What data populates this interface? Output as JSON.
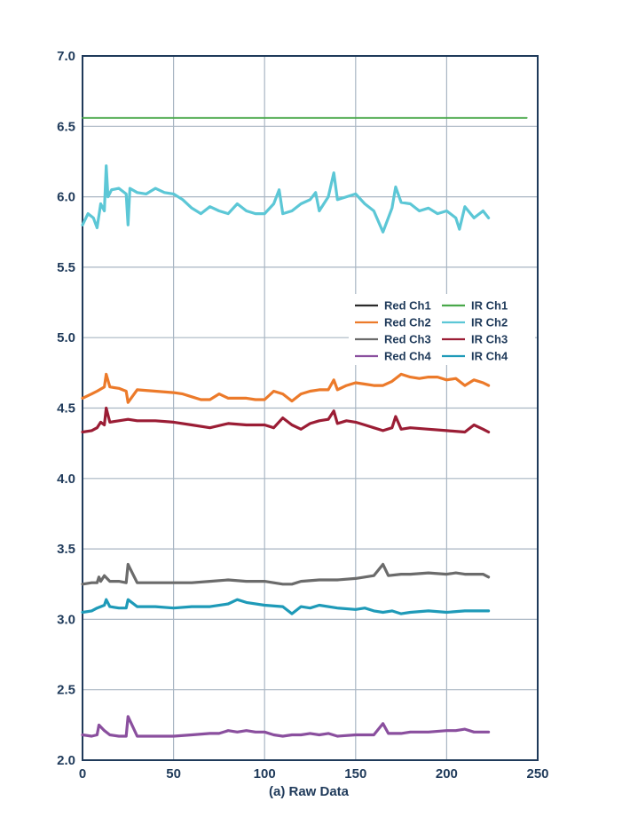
{
  "chart_data": {
    "type": "line",
    "title": "",
    "xlabel": "(a) Raw Data",
    "ylabel": "",
    "xlim": [
      0,
      250
    ],
    "ylim": [
      2.0,
      7.0
    ],
    "xticks": [
      0,
      50,
      100,
      150,
      200,
      250
    ],
    "xtick_labels": [
      "0",
      "50",
      "100",
      "150",
      "200",
      "250"
    ],
    "yticks": [
      2.0,
      2.5,
      3.0,
      3.5,
      4.0,
      4.5,
      5.0,
      5.5,
      6.0,
      6.5,
      7.0
    ],
    "ytick_labels": [
      "2.0",
      "2.5",
      "3.0",
      "3.5",
      "4.0",
      "4.5",
      "5.0",
      "5.5",
      "6.0",
      "6.5",
      "7.0"
    ],
    "grid": true,
    "legend_position": "right-middle",
    "series": [
      {
        "name": "Red Ch1",
        "color": "#2b2b2b",
        "x": [],
        "y": []
      },
      {
        "name": "Red Ch2",
        "color": "#ec7a2a",
        "x": [
          0,
          5,
          8,
          12,
          13,
          15,
          20,
          24,
          25,
          30,
          40,
          50,
          55,
          60,
          65,
          70,
          75,
          80,
          85,
          90,
          95,
          100,
          105,
          110,
          115,
          120,
          125,
          130,
          135,
          138,
          140,
          145,
          150,
          155,
          160,
          165,
          170,
          175,
          180,
          185,
          190,
          195,
          200,
          205,
          210,
          215,
          220,
          223
        ],
        "y": [
          4.57,
          4.6,
          4.62,
          4.65,
          4.74,
          4.65,
          4.64,
          4.62,
          4.54,
          4.63,
          4.62,
          4.61,
          4.6,
          4.58,
          4.56,
          4.56,
          4.6,
          4.57,
          4.57,
          4.57,
          4.56,
          4.56,
          4.62,
          4.6,
          4.55,
          4.6,
          4.62,
          4.63,
          4.63,
          4.7,
          4.63,
          4.66,
          4.68,
          4.67,
          4.66,
          4.66,
          4.69,
          4.74,
          4.72,
          4.71,
          4.72,
          4.72,
          4.7,
          4.71,
          4.66,
          4.7,
          4.68,
          4.66
        ]
      },
      {
        "name": "Red Ch3",
        "color": "#6b6b6b",
        "x": [
          0,
          5,
          8,
          9,
          10,
          12,
          15,
          20,
          24,
          25,
          30,
          40,
          50,
          60,
          70,
          80,
          90,
          100,
          110,
          115,
          120,
          130,
          140,
          150,
          160,
          165,
          168,
          175,
          180,
          190,
          200,
          205,
          210,
          220,
          223
        ],
        "y": [
          3.25,
          3.26,
          3.26,
          3.3,
          3.27,
          3.31,
          3.27,
          3.27,
          3.26,
          3.39,
          3.26,
          3.26,
          3.26,
          3.26,
          3.27,
          3.28,
          3.27,
          3.27,
          3.25,
          3.25,
          3.27,
          3.28,
          3.28,
          3.29,
          3.31,
          3.39,
          3.31,
          3.32,
          3.32,
          3.33,
          3.32,
          3.33,
          3.32,
          3.32,
          3.3
        ]
      },
      {
        "name": "Red Ch4",
        "color": "#8a4f9e",
        "x": [
          0,
          5,
          8,
          9,
          12,
          15,
          20,
          24,
          25,
          30,
          40,
          50,
          60,
          70,
          75,
          80,
          85,
          90,
          95,
          100,
          105,
          110,
          115,
          120,
          125,
          130,
          135,
          140,
          150,
          160,
          165,
          168,
          175,
          180,
          190,
          200,
          205,
          210,
          215,
          220,
          223
        ],
        "y": [
          2.18,
          2.17,
          2.18,
          2.25,
          2.21,
          2.18,
          2.17,
          2.17,
          2.31,
          2.17,
          2.17,
          2.17,
          2.18,
          2.19,
          2.19,
          2.21,
          2.2,
          2.21,
          2.2,
          2.2,
          2.18,
          2.17,
          2.18,
          2.18,
          2.19,
          2.18,
          2.19,
          2.17,
          2.18,
          2.18,
          2.26,
          2.19,
          2.19,
          2.2,
          2.2,
          2.21,
          2.21,
          2.22,
          2.2,
          2.2,
          2.2
        ]
      },
      {
        "name": "IR Ch1",
        "color": "#49a84a",
        "x": [
          0,
          244
        ],
        "y": [
          6.56,
          6.56
        ]
      },
      {
        "name": "IR Ch2",
        "color": "#5cc7d6",
        "x": [
          0,
          3,
          6,
          8,
          10,
          12,
          13,
          14,
          16,
          20,
          24,
          25,
          26,
          30,
          35,
          40,
          45,
          50,
          55,
          60,
          65,
          70,
          75,
          80,
          85,
          90,
          95,
          100,
          105,
          108,
          110,
          115,
          120,
          125,
          128,
          130,
          135,
          138,
          140,
          145,
          150,
          155,
          160,
          165,
          170,
          172,
          175,
          180,
          185,
          190,
          195,
          200,
          205,
          207,
          210,
          215,
          220,
          223
        ],
        "y": [
          5.8,
          5.88,
          5.85,
          5.78,
          5.95,
          5.9,
          6.22,
          6.0,
          6.05,
          6.06,
          6.02,
          5.8,
          6.06,
          6.03,
          6.02,
          6.06,
          6.03,
          6.02,
          5.98,
          5.92,
          5.88,
          5.93,
          5.9,
          5.88,
          5.95,
          5.9,
          5.88,
          5.88,
          5.95,
          6.05,
          5.88,
          5.9,
          5.95,
          5.98,
          6.03,
          5.9,
          6.0,
          6.17,
          5.98,
          6.0,
          6.02,
          5.95,
          5.9,
          5.75,
          5.92,
          6.07,
          5.96,
          5.95,
          5.9,
          5.92,
          5.88,
          5.9,
          5.85,
          5.77,
          5.93,
          5.85,
          5.9,
          5.85
        ]
      },
      {
        "name": "IR Ch3",
        "color": "#9b1d35",
        "x": [
          0,
          5,
          8,
          10,
          12,
          13,
          15,
          20,
          25,
          30,
          40,
          50,
          60,
          70,
          80,
          90,
          100,
          105,
          110,
          115,
          120,
          125,
          130,
          135,
          138,
          140,
          145,
          150,
          155,
          160,
          165,
          170,
          172,
          175,
          180,
          190,
          200,
          210,
          215,
          220,
          223
        ],
        "y": [
          4.33,
          4.34,
          4.36,
          4.4,
          4.38,
          4.5,
          4.4,
          4.41,
          4.42,
          4.41,
          4.41,
          4.4,
          4.38,
          4.36,
          4.39,
          4.38,
          4.38,
          4.36,
          4.43,
          4.38,
          4.35,
          4.39,
          4.41,
          4.42,
          4.48,
          4.39,
          4.41,
          4.4,
          4.38,
          4.36,
          4.34,
          4.36,
          4.44,
          4.35,
          4.36,
          4.35,
          4.34,
          4.33,
          4.38,
          4.35,
          4.33
        ]
      },
      {
        "name": "IR Ch4",
        "color": "#1e9ab8",
        "x": [
          0,
          5,
          8,
          10,
          12,
          13,
          15,
          20,
          24,
          25,
          30,
          40,
          50,
          60,
          70,
          80,
          85,
          90,
          100,
          110,
          115,
          120,
          125,
          130,
          140,
          150,
          155,
          160,
          165,
          170,
          175,
          180,
          190,
          200,
          210,
          220,
          223
        ],
        "y": [
          3.05,
          3.06,
          3.08,
          3.09,
          3.1,
          3.14,
          3.09,
          3.08,
          3.08,
          3.14,
          3.09,
          3.09,
          3.08,
          3.09,
          3.09,
          3.11,
          3.14,
          3.12,
          3.1,
          3.09,
          3.04,
          3.09,
          3.08,
          3.1,
          3.08,
          3.07,
          3.08,
          3.06,
          3.05,
          3.06,
          3.04,
          3.05,
          3.06,
          3.05,
          3.06,
          3.06,
          3.06
        ]
      }
    ]
  }
}
